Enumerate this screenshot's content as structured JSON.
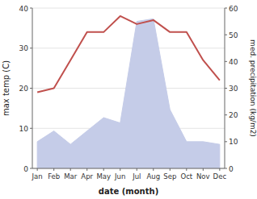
{
  "chart_data": {
    "type": "line",
    "categories": [
      "Jan",
      "Feb",
      "Mar",
      "Apr",
      "May",
      "Jun",
      "Jul",
      "Aug",
      "Sep",
      "Oct",
      "Nov",
      "Dec"
    ],
    "series": [
      {
        "type": "area",
        "axis": "y2",
        "color": "#c5cce8",
        "values": [
          10,
          14,
          9,
          14,
          19,
          17,
          55,
          56,
          22,
          10,
          10,
          9
        ]
      },
      {
        "type": "line",
        "color": "#c0504d",
        "values": [
          19,
          20,
          27,
          34,
          34,
          38,
          36,
          37,
          34,
          34,
          27,
          22
        ]
      }
    ],
    "ylim": [
      0,
      40
    ],
    "yticks": [
      0,
      10,
      20,
      30,
      40
    ],
    "y2lim": [
      0,
      60
    ],
    "y2ticks": [
      0,
      10,
      20,
      30,
      40,
      50,
      60
    ],
    "ylabel": "max temp (C)",
    "y2label": "med. precipitation (kg/m2)",
    "xlabel": "date (month)",
    "grid": true
  }
}
